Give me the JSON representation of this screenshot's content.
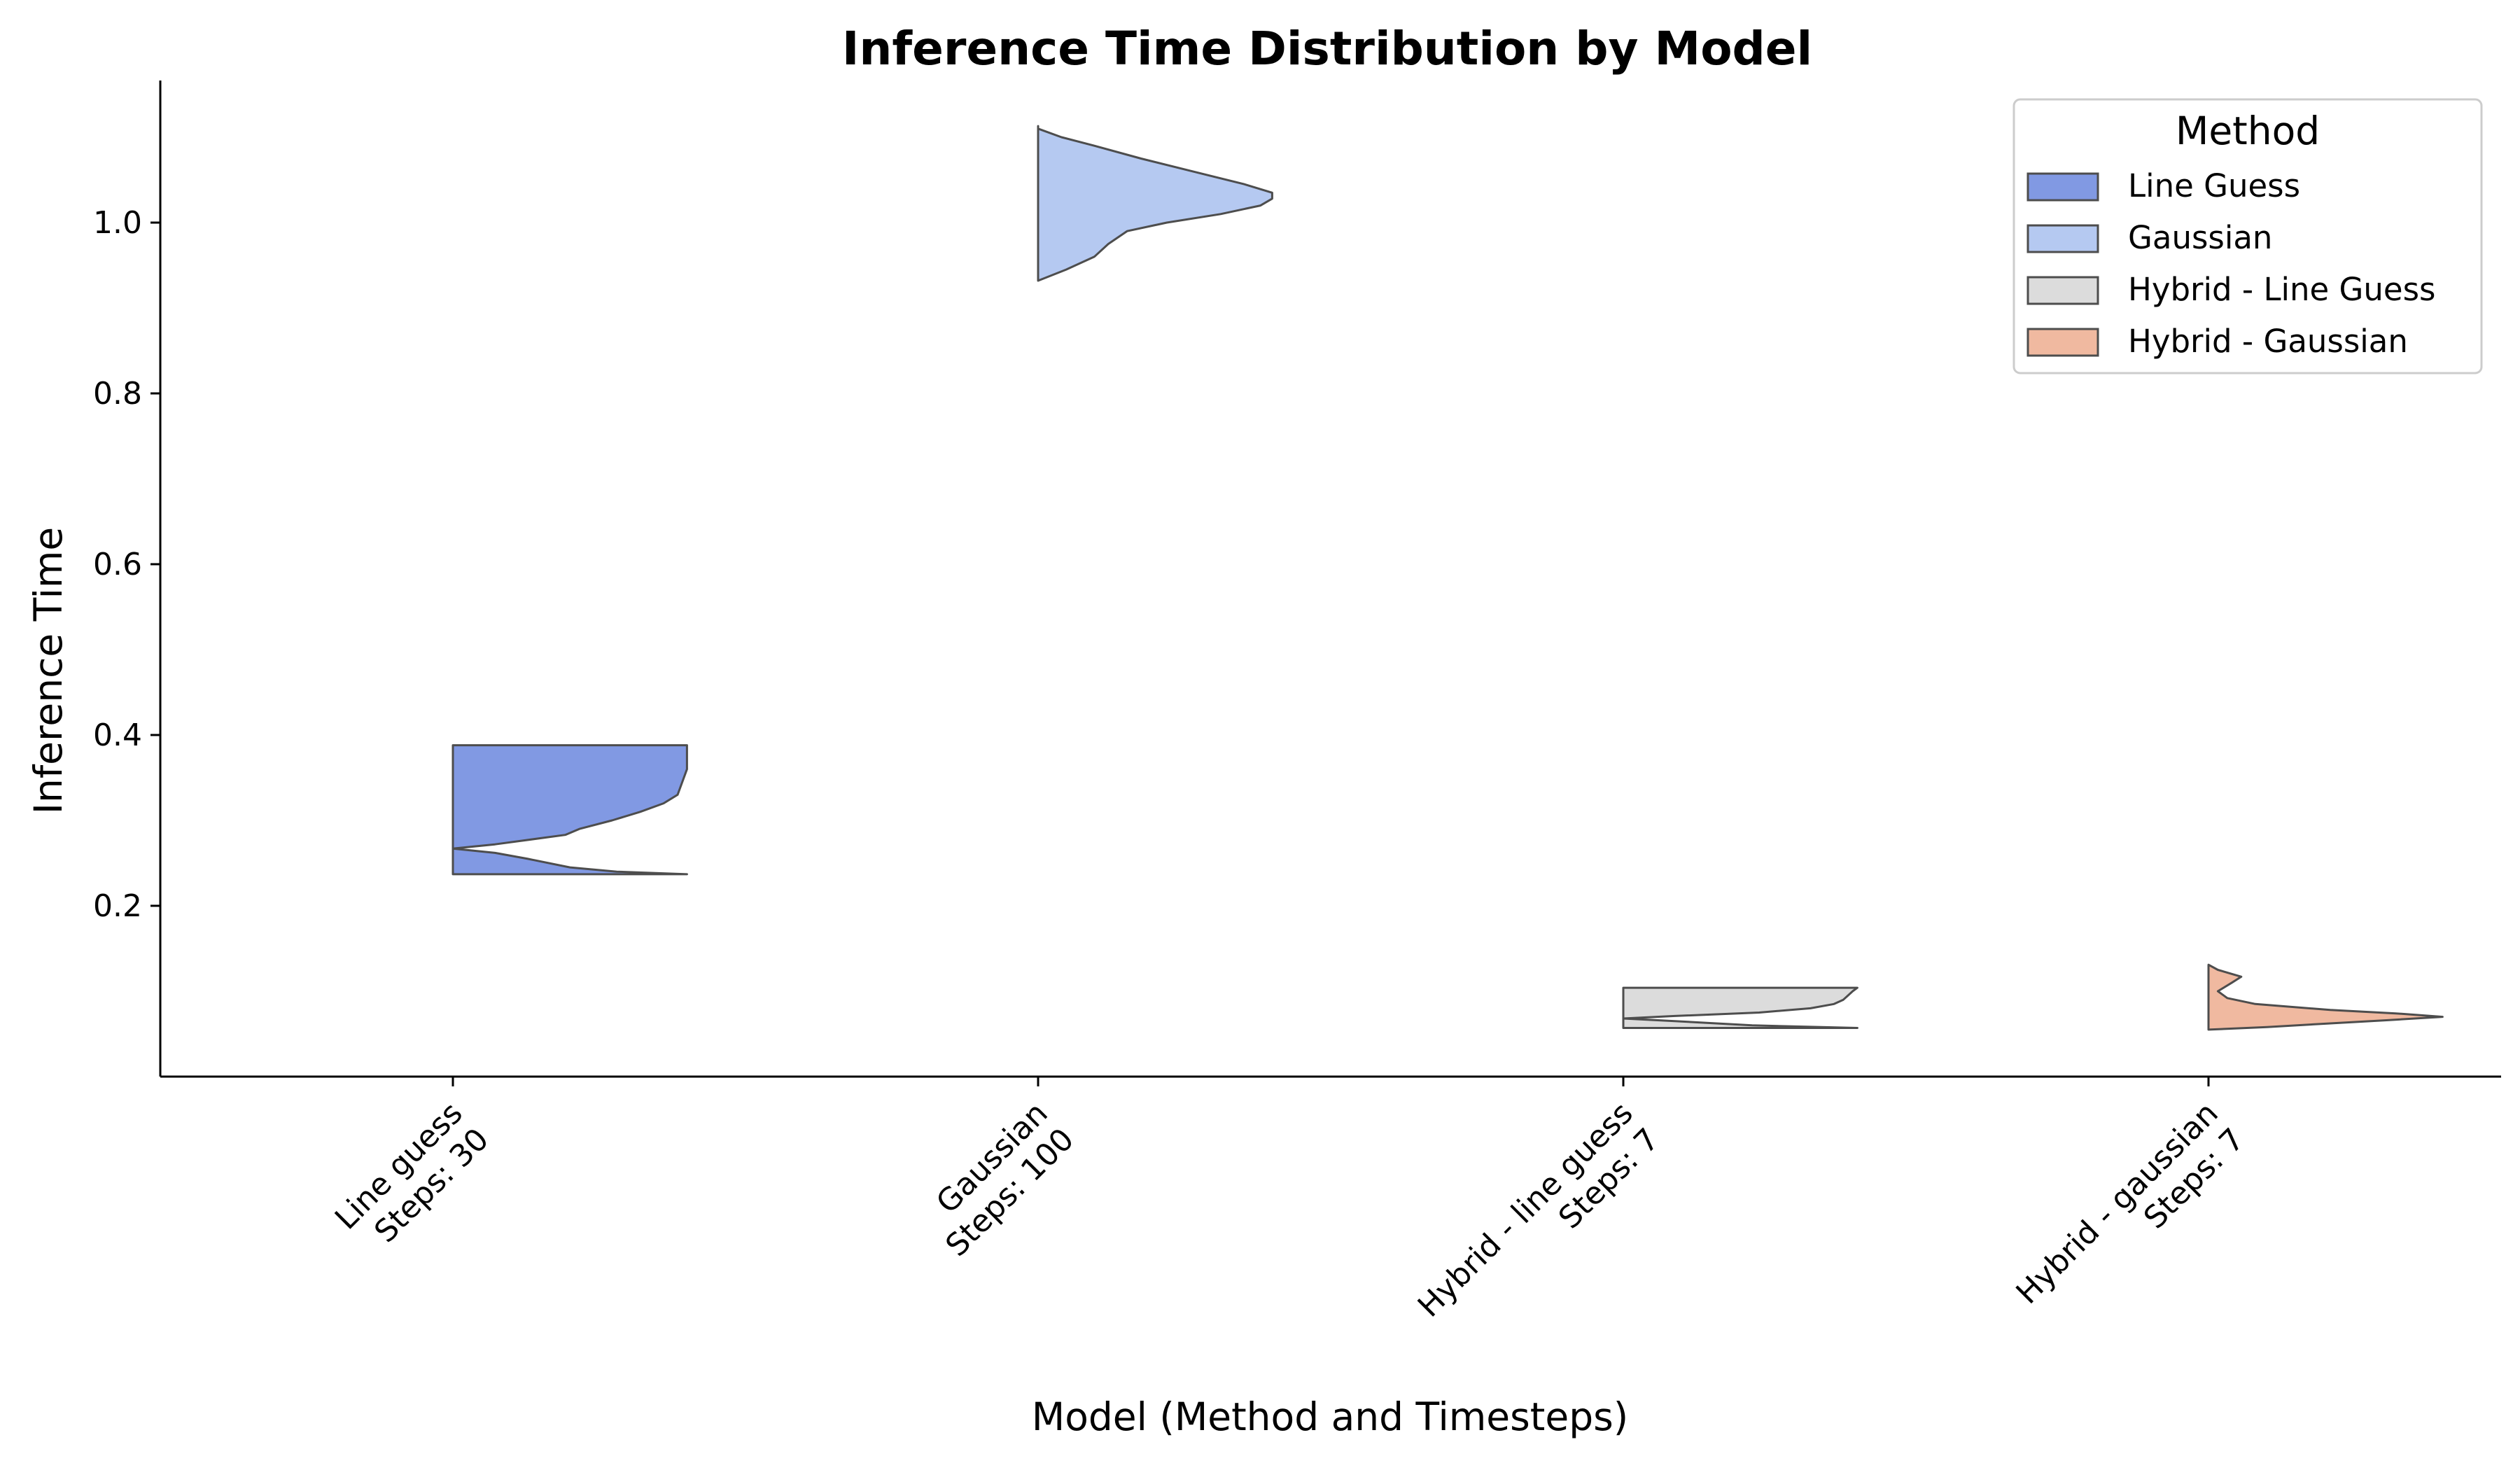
{
  "chart_data": {
    "type": "violin",
    "title": "Inference Time Distribution by Model",
    "xlabel": "Model (Method and Timesteps)",
    "ylabel": "Inference Time",
    "ylim": [
      0.0,
      1.16
    ],
    "yticks": [
      0.2,
      0.4,
      0.6,
      0.8,
      1.0
    ],
    "yticklabels": [
      "0.2",
      "0.4",
      "0.6",
      "0.8",
      "1.0"
    ],
    "grid": false,
    "legend": {
      "title": "Method",
      "position": "top-right",
      "entries": [
        {
          "label": "Line Guess",
          "color": "#8199e3"
        },
        {
          "label": "Gaussian",
          "color": "#b5c9f1"
        },
        {
          "label": "Hybrid - Line Guess",
          "color": "#dcdcdc"
        },
        {
          "label": "Hybrid - Gaussian",
          "color": "#f0b9a0"
        }
      ]
    },
    "categories": [
      {
        "label_line1": "Line guess",
        "label_line2": "Steps: 30",
        "method": "Line Guess",
        "color": "#8199e3",
        "profile": [
          [
            0.237,
            1.0
          ],
          [
            0.24,
            0.7
          ],
          [
            0.245,
            0.5
          ],
          [
            0.255,
            0.32
          ],
          [
            0.262,
            0.18
          ],
          [
            0.267,
            0.0
          ],
          [
            0.272,
            0.18
          ],
          [
            0.283,
            0.48
          ],
          [
            0.29,
            0.54
          ],
          [
            0.3,
            0.68
          ],
          [
            0.31,
            0.8
          ],
          [
            0.32,
            0.9
          ],
          [
            0.33,
            0.96
          ],
          [
            0.345,
            0.98
          ],
          [
            0.36,
            1.0
          ],
          [
            0.375,
            1.0
          ],
          [
            0.388,
            1.0
          ]
        ]
      },
      {
        "label_line1": "Gaussian",
        "label_line2": "Steps: 100",
        "method": "Gaussian",
        "color": "#b5c9f1",
        "profile": [
          [
            0.932,
            0.0
          ],
          [
            0.945,
            0.12
          ],
          [
            0.96,
            0.24
          ],
          [
            0.975,
            0.3
          ],
          [
            0.99,
            0.38
          ],
          [
            1.0,
            0.55
          ],
          [
            1.01,
            0.78
          ],
          [
            1.02,
            0.95
          ],
          [
            1.028,
            1.0
          ],
          [
            1.035,
            1.0
          ],
          [
            1.045,
            0.88
          ],
          [
            1.06,
            0.66
          ],
          [
            1.075,
            0.44
          ],
          [
            1.09,
            0.24
          ],
          [
            1.1,
            0.1
          ],
          [
            1.11,
            0.0
          ],
          [
            1.113,
            0.0
          ]
        ]
      },
      {
        "label_line1": "Hybrid - line guess",
        "label_line2": "Steps: 7",
        "method": "Hybrid - Line Guess",
        "color": "#dcdcdc",
        "profile": [
          [
            0.057,
            1.0
          ],
          [
            0.06,
            0.55
          ],
          [
            0.065,
            0.22
          ],
          [
            0.068,
            0.0
          ],
          [
            0.071,
            0.22
          ],
          [
            0.075,
            0.58
          ],
          [
            0.08,
            0.8
          ],
          [
            0.085,
            0.9
          ],
          [
            0.09,
            0.94
          ],
          [
            0.095,
            0.96
          ],
          [
            0.1,
            0.98
          ],
          [
            0.104,
            1.0
          ]
        ]
      },
      {
        "label_line1": "Hybrid - gaussian",
        "label_line2": "Steps: 7",
        "method": "Hybrid - Gaussian",
        "color": "#f0b9a0",
        "profile": [
          [
            0.055,
            0.0
          ],
          [
            0.058,
            0.25
          ],
          [
            0.062,
            0.5
          ],
          [
            0.066,
            0.76
          ],
          [
            0.07,
            1.0
          ],
          [
            0.074,
            0.8
          ],
          [
            0.078,
            0.52
          ],
          [
            0.085,
            0.2
          ],
          [
            0.092,
            0.08
          ],
          [
            0.1,
            0.04
          ],
          [
            0.11,
            0.1
          ],
          [
            0.117,
            0.14
          ],
          [
            0.125,
            0.04
          ],
          [
            0.131,
            0.0
          ]
        ]
      }
    ]
  }
}
